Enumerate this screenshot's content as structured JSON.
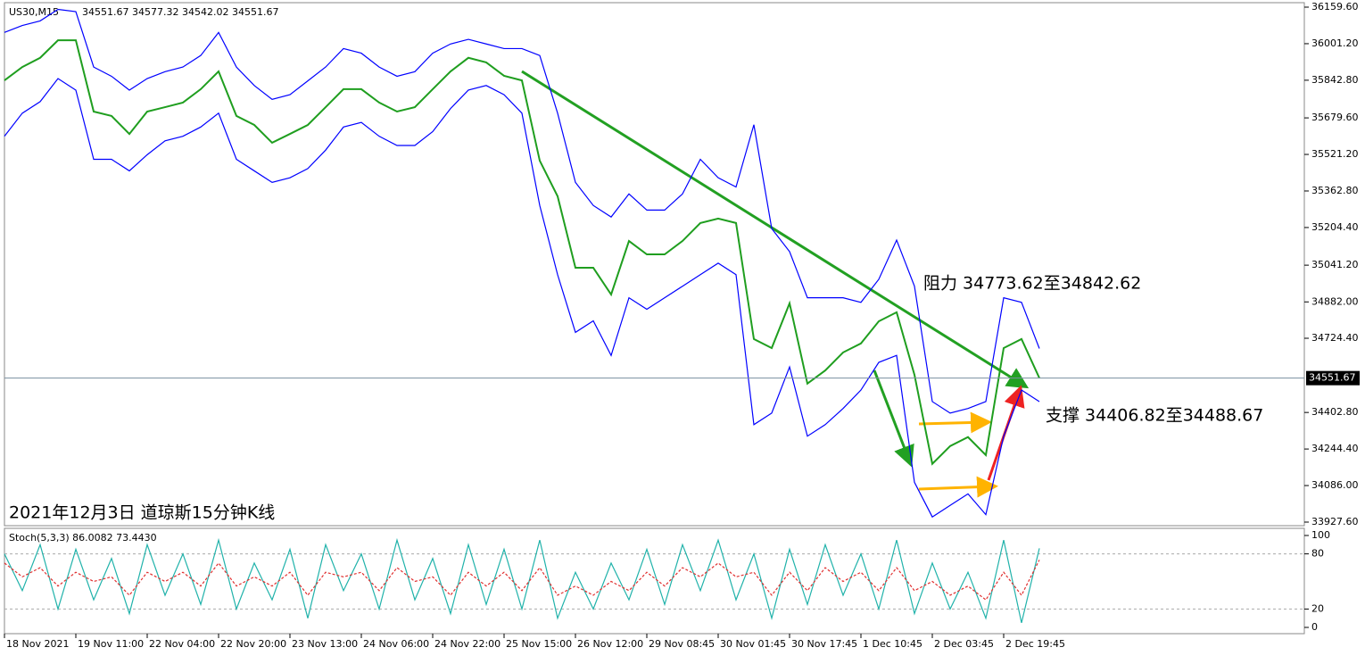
{
  "chart_data": [
    {
      "type": "line",
      "symbol": "US30,M15",
      "ohlc": [
        34551.67,
        34577.32,
        34542.02,
        34551.67
      ],
      "annotations": [
        "阻力 34773.62至34842.62",
        "支撑 34406.82至34488.67",
        "2021年12月3日 道琼斯15分钟K线"
      ],
      "categories": [
        "18 Nov 2021",
        null,
        null,
        null,
        "19 Nov 11:00",
        null,
        null,
        null,
        "22 Nov 04:00",
        null,
        null,
        null,
        "22 Nov 20:00",
        null,
        null,
        null,
        "23 Nov 13:00",
        null,
        null,
        null,
        "24 Nov 06:00",
        null,
        null,
        null,
        "24 Nov 22:00",
        null,
        null,
        null,
        "25 Nov 15:00",
        null,
        null,
        null,
        "26 Nov 12:00",
        null,
        null,
        null,
        "29 Nov 08:45",
        null,
        null,
        null,
        "30 Nov 01:45",
        null,
        null,
        null,
        "30 Nov 17:45",
        null,
        null,
        null,
        "1 Dec 10:45",
        null,
        null,
        null,
        "2 Dec 03:45",
        null,
        null,
        null,
        "2 Dec 19:45",
        null,
        null
      ],
      "ylim": [
        33927.6,
        36159.6
      ],
      "yticks": [
        {
          "value": 36159.6,
          "label": "36159.60"
        },
        {
          "value": 36001.2,
          "label": "36001.20"
        },
        {
          "value": 35842.8,
          "label": "35842.80"
        },
        {
          "value": 35679.6,
          "label": "35679.60"
        },
        {
          "value": 35521.2,
          "label": "35521.20"
        },
        {
          "value": 35362.8,
          "label": "35362.80"
        },
        {
          "value": 35204.4,
          "label": "35204.40"
        },
        {
          "value": 35041.2,
          "label": "35041.20"
        },
        {
          "value": 34882,
          "label": "34882.00"
        },
        {
          "value": 34724.4,
          "label": "34724.40"
        },
        {
          "value": 34402.8,
          "label": "34402.80"
        },
        {
          "value": 34244.4,
          "label": "34244.40"
        },
        {
          "value": 34086,
          "label": "34086.00"
        },
        {
          "value": 33927.6,
          "label": "33927.60"
        }
      ],
      "price_line": 34551.67,
      "series": [
        {
          "name": "Close",
          "color": "#1f9e1f",
          "values": [
            35842,
            35900,
            35940,
            36016,
            36016,
            35707,
            35688,
            35610,
            35707,
            35726,
            35746,
            35804,
            35881,
            35688,
            35649,
            35572,
            35610,
            35649,
            35726,
            35804,
            35804,
            35746,
            35707,
            35726,
            35804,
            35881,
            35940,
            35920,
            35862,
            35842,
            35494,
            35340,
            35030,
            35030,
            34914,
            35146,
            35088,
            35088,
            35146,
            35224,
            35243,
            35224,
            34721,
            34682,
            34876,
            34528,
            34585,
            34663,
            34702,
            34798,
            34837,
            34566,
            34180,
            34257,
            34296,
            34218,
            34682,
            34721,
            34552
          ]
        },
        {
          "name": "Upper",
          "color": "#0000ff",
          "values": [
            36050,
            36080,
            36100,
            36150,
            36140,
            35900,
            35860,
            35800,
            35850,
            35880,
            35900,
            35950,
            36050,
            35900,
            35820,
            35760,
            35780,
            35840,
            35900,
            35980,
            35960,
            35900,
            35860,
            35880,
            35960,
            36000,
            36020,
            36000,
            35980,
            35980,
            35950,
            35700,
            35400,
            35300,
            35250,
            35350,
            35280,
            35280,
            35350,
            35500,
            35420,
            35380,
            35650,
            35200,
            35100,
            34900,
            34900,
            34900,
            34880,
            34980,
            35150,
            34950,
            34450,
            34400,
            34420,
            34450,
            34900,
            34880,
            34680
          ]
        },
        {
          "name": "Lower",
          "color": "#0000ff",
          "values": [
            35600,
            35700,
            35750,
            35850,
            35800,
            35500,
            35500,
            35450,
            35520,
            35580,
            35600,
            35640,
            35700,
            35500,
            35450,
            35400,
            35420,
            35460,
            35540,
            35640,
            35660,
            35600,
            35560,
            35560,
            35620,
            35720,
            35800,
            35820,
            35780,
            35700,
            35300,
            35000,
            34750,
            34800,
            34650,
            34900,
            34850,
            34900,
            34950,
            35000,
            35050,
            35000,
            34350,
            34400,
            34600,
            34300,
            34350,
            34420,
            34500,
            34620,
            34650,
            34100,
            33950,
            34000,
            34050,
            33960,
            34300,
            34500,
            34450
          ]
        }
      ]
    },
    {
      "type": "line",
      "title": "Stoch(5,3,3) 86.0082 73.4430",
      "ylim": [
        0,
        100
      ],
      "yticks": [
        0,
        20,
        80,
        100
      ],
      "series": [
        {
          "name": "%K",
          "color": "#20b2aa",
          "values": [
            80,
            40,
            90,
            20,
            85,
            30,
            75,
            15,
            90,
            35,
            80,
            25,
            95,
            20,
            70,
            30,
            85,
            10,
            90,
            40,
            80,
            20,
            95,
            30,
            75,
            15,
            90,
            25,
            85,
            20,
            95,
            10,
            60,
            20,
            70,
            30,
            85,
            25,
            90,
            40,
            95,
            30,
            80,
            10,
            85,
            25,
            90,
            35,
            80,
            20,
            95,
            15,
            70,
            20,
            60,
            10,
            95,
            5,
            86.0082
          ]
        },
        {
          "name": "%D",
          "color": "#e03030",
          "values": [
            70,
            55,
            65,
            45,
            60,
            50,
            55,
            35,
            60,
            50,
            60,
            45,
            70,
            45,
            55,
            45,
            60,
            35,
            60,
            55,
            60,
            40,
            65,
            50,
            55,
            35,
            60,
            45,
            60,
            40,
            65,
            35,
            45,
            35,
            50,
            40,
            60,
            45,
            65,
            55,
            70,
            55,
            60,
            35,
            60,
            40,
            65,
            50,
            60,
            40,
            65,
            40,
            50,
            35,
            45,
            30,
            60,
            35,
            73.443
          ]
        }
      ]
    }
  ]
}
